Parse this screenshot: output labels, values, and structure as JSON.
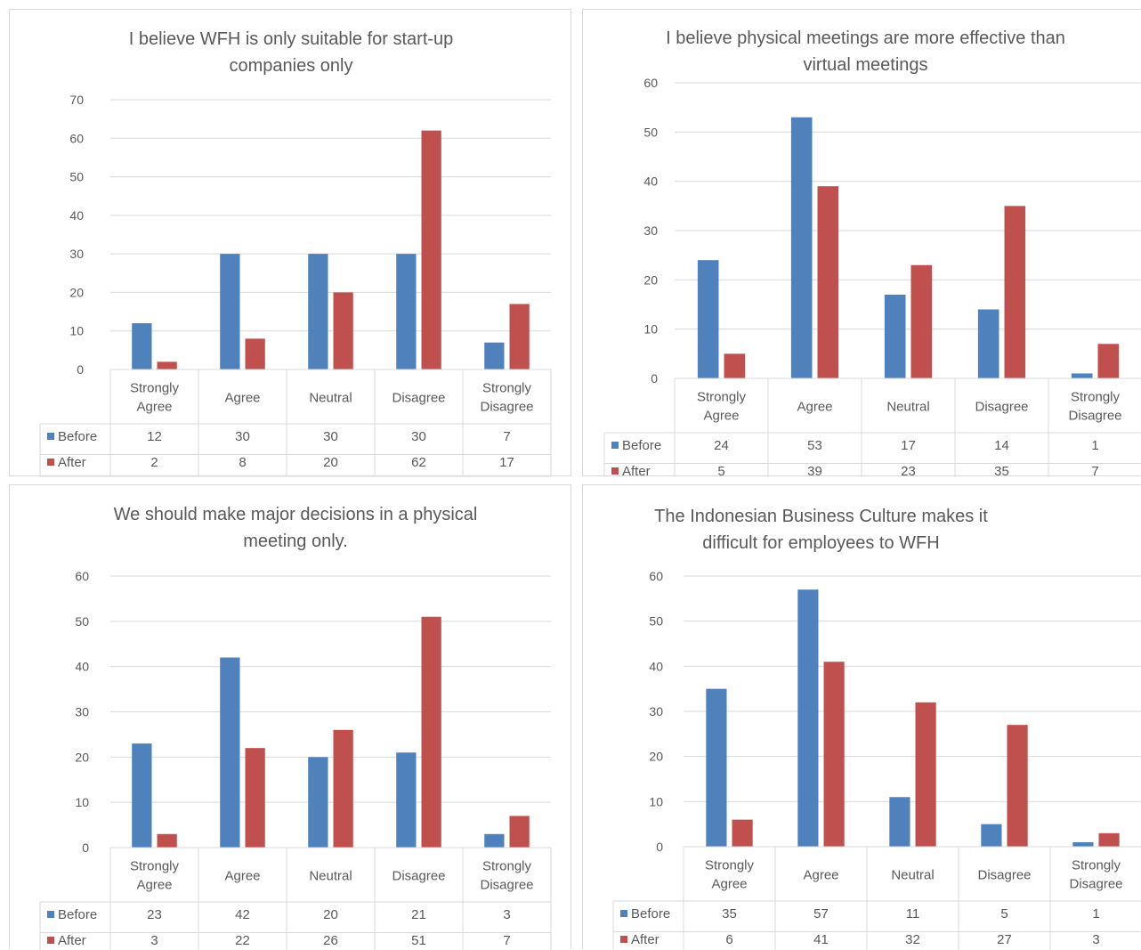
{
  "colors": {
    "before": "#4f81bd",
    "after": "#c0504d",
    "grid": "#d9d9d9",
    "text": "#595959"
  },
  "chart_data": [
    {
      "type": "bar",
      "title": "I believe WFH is only suitable for start-up companies only",
      "categories": [
        "Strongly Agree",
        "Agree",
        "Neutral",
        "Disagree",
        "Strongly Disagree"
      ],
      "series": [
        {
          "name": "Before",
          "values": [
            12,
            30,
            30,
            30,
            7
          ]
        },
        {
          "name": "After",
          "values": [
            2,
            8,
            20,
            62,
            17
          ]
        }
      ],
      "ylim": [
        0,
        70
      ],
      "yticks": [
        0,
        10,
        20,
        30,
        40,
        50,
        60,
        70
      ],
      "grid": true,
      "legend": "data-table"
    },
    {
      "type": "bar",
      "title": "I believe physical meetings are more effective than virtual meetings",
      "categories": [
        "Strongly Agree",
        "Agree",
        "Neutral",
        "Disagree",
        "Strongly Disagree"
      ],
      "series": [
        {
          "name": "Before",
          "values": [
            24,
            53,
            17,
            14,
            1
          ]
        },
        {
          "name": "After",
          "values": [
            5,
            39,
            23,
            35,
            7
          ]
        }
      ],
      "ylim": [
        0,
        60
      ],
      "yticks": [
        0,
        10,
        20,
        30,
        40,
        50,
        60
      ],
      "grid": true,
      "legend": "data-table"
    },
    {
      "type": "bar",
      "title": "We should make major decisions in a physical meeting only.",
      "categories": [
        "Strongly Agree",
        "Agree",
        "Neutral",
        "Disagree",
        "Strongly Disagree"
      ],
      "series": [
        {
          "name": "Before",
          "values": [
            23,
            42,
            20,
            21,
            3
          ]
        },
        {
          "name": "After",
          "values": [
            3,
            22,
            26,
            51,
            7
          ]
        }
      ],
      "ylim": [
        0,
        60
      ],
      "yticks": [
        0,
        10,
        20,
        30,
        40,
        50,
        60
      ],
      "grid": true,
      "legend": "data-table"
    },
    {
      "type": "bar",
      "title": "The Indonesian Business Culture makes it difficult for employees to WFH",
      "categories": [
        "Strongly Agree",
        "Agree",
        "Neutral",
        "Disagree",
        "Strongly Disagree"
      ],
      "series": [
        {
          "name": "Before",
          "values": [
            35,
            57,
            11,
            5,
            1
          ]
        },
        {
          "name": "After",
          "values": [
            6,
            41,
            32,
            27,
            3
          ]
        }
      ],
      "ylim": [
        0,
        60
      ],
      "yticks": [
        0,
        10,
        20,
        30,
        40,
        50,
        60
      ],
      "grid": true,
      "legend": "data-table"
    }
  ]
}
